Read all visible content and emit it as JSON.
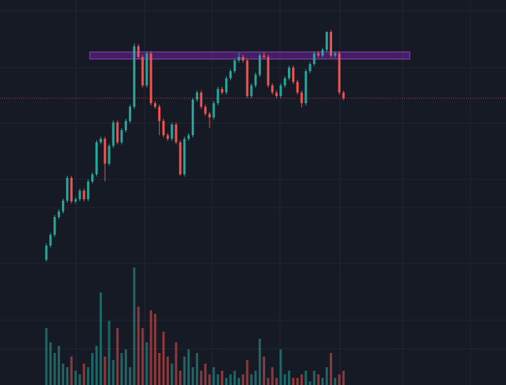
{
  "chart_data": {
    "type": "candlestick",
    "ylim": [
      0,
      541
    ],
    "volume_lim": [
      0,
      541
    ],
    "up_color": "#26a69a",
    "down_color": "#ef5350",
    "open": [
      176,
      196,
      211,
      236,
      244,
      259,
      291,
      258,
      261,
      273,
      261,
      286,
      296,
      341,
      346,
      311,
      336,
      369,
      341,
      358,
      371,
      391,
      476,
      461,
      421,
      466,
      396,
      391,
      371,
      351,
      346,
      366,
      341,
      296,
      346,
      351,
      401,
      411,
      391,
      381,
      376,
      396,
      416,
      411,
      431,
      441,
      456,
      461,
      456,
      406,
      421,
      436,
      463,
      461,
      421,
      411,
      406,
      421,
      431,
      446,
      426,
      411,
      396,
      441,
      451,
      466,
      463,
      471,
      496,
      463,
      466,
      411
    ],
    "high": [
      199,
      214,
      239,
      247,
      262,
      294,
      294,
      264,
      276,
      276,
      289,
      299,
      344,
      349,
      349,
      339,
      372,
      372,
      361,
      374,
      394,
      480,
      479,
      464,
      469,
      469,
      399,
      394,
      374,
      354,
      369,
      369,
      344,
      349,
      354,
      404,
      414,
      414,
      394,
      384,
      399,
      419,
      419,
      434,
      444,
      459,
      467,
      464,
      459,
      424,
      439,
      466,
      468,
      464,
      424,
      414,
      424,
      434,
      449,
      449,
      429,
      414,
      444,
      454,
      469,
      469,
      474,
      497,
      499,
      469,
      469,
      414
    ],
    "low": [
      173,
      193,
      208,
      233,
      241,
      256,
      255,
      255,
      258,
      258,
      258,
      283,
      293,
      338,
      286,
      308,
      333,
      338,
      338,
      355,
      368,
      388,
      458,
      418,
      418,
      393,
      388,
      351,
      348,
      343,
      343,
      338,
      294,
      293,
      343,
      348,
      398,
      388,
      378,
      361,
      373,
      393,
      408,
      408,
      428,
      438,
      453,
      453,
      403,
      403,
      418,
      433,
      458,
      418,
      408,
      403,
      403,
      418,
      428,
      423,
      408,
      390,
      393,
      438,
      448,
      460,
      460,
      468,
      460,
      460,
      408,
      400
    ],
    "close": [
      196,
      211,
      236,
      244,
      259,
      291,
      258,
      261,
      273,
      261,
      286,
      296,
      341,
      346,
      311,
      336,
      369,
      341,
      358,
      371,
      391,
      476,
      461,
      421,
      466,
      396,
      391,
      371,
      351,
      346,
      366,
      341,
      296,
      346,
      351,
      401,
      411,
      391,
      381,
      376,
      396,
      416,
      411,
      431,
      441,
      456,
      461,
      456,
      406,
      421,
      436,
      463,
      461,
      421,
      411,
      406,
      421,
      431,
      446,
      426,
      411,
      396,
      441,
      451,
      466,
      463,
      471,
      496,
      463,
      466,
      411,
      403
    ],
    "volume": [
      80,
      60,
      45,
      55,
      30,
      25,
      40,
      20,
      15,
      30,
      25,
      45,
      55,
      130,
      40,
      90,
      35,
      80,
      45,
      50,
      25,
      165,
      110,
      80,
      60,
      105,
      100,
      45,
      75,
      40,
      30,
      60,
      20,
      40,
      50,
      25,
      45,
      20,
      30,
      15,
      25,
      15,
      20,
      10,
      15,
      20,
      10,
      15,
      35,
      15,
      20,
      65,
      40,
      10,
      25,
      10,
      50,
      15,
      20,
      10,
      10,
      15,
      20,
      5,
      20,
      15,
      10,
      25,
      45,
      10,
      15,
      20
    ],
    "price_line": true
  }
}
